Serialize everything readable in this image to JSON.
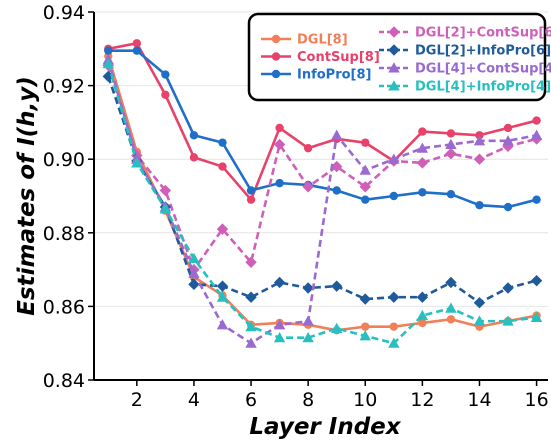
{
  "chart_data": {
    "type": "line",
    "xlabel": "Layer Index",
    "ylabel": "Estimates of I(h,y)",
    "xlim": [
      0.5,
      16.4
    ],
    "ylim": [
      0.84,
      0.94
    ],
    "x_ticks": [
      2,
      4,
      6,
      8,
      10,
      12,
      14,
      16
    ],
    "y_ticks": [
      0.84,
      0.86,
      0.88,
      0.9,
      0.92,
      0.94
    ],
    "y_tick_labels": [
      "0.84",
      "0.86",
      "0.88",
      "0.90",
      "0.92",
      "0.94"
    ],
    "x": [
      1,
      2,
      3,
      4,
      5,
      6,
      7,
      8,
      9,
      10,
      11,
      12,
      13,
      14,
      15,
      16
    ],
    "legend_position": "top-right",
    "series": [
      {
        "name": "DGL[8]",
        "color": "#f0805a",
        "style": "solid",
        "marker": "circle",
        "values": [
          0.928,
          0.902,
          0.886,
          0.868,
          0.863,
          0.855,
          0.8555,
          0.855,
          0.8535,
          0.8545,
          0.8545,
          0.8555,
          0.8565,
          0.8545,
          0.856,
          0.8575
        ]
      },
      {
        "name": "ContSup[8]",
        "color": "#e8416a",
        "style": "solid",
        "marker": "circle",
        "values": [
          0.93,
          0.9315,
          0.9175,
          0.9005,
          0.898,
          0.889,
          0.9085,
          0.903,
          0.9055,
          0.9045,
          0.8995,
          0.9075,
          0.907,
          0.9065,
          0.9085,
          0.9105
        ]
      },
      {
        "name": "InfoPro[8]",
        "color": "#1f6fc8",
        "style": "solid",
        "marker": "circle",
        "values": [
          0.9295,
          0.9295,
          0.923,
          0.9065,
          0.9045,
          0.8915,
          0.8935,
          0.893,
          0.8915,
          0.889,
          0.89,
          0.891,
          0.8905,
          0.8875,
          0.887,
          0.889
        ]
      },
      {
        "name": "DGL[2]+ContSup[6]",
        "color": "#cf5fb8",
        "style": "dashed",
        "marker": "diamond",
        "values": [
          0.9255,
          0.901,
          0.8915,
          0.87,
          0.881,
          0.872,
          0.904,
          0.8925,
          0.898,
          0.8925,
          0.8995,
          0.899,
          0.9015,
          0.9,
          0.9035,
          0.9055
        ]
      },
      {
        "name": "DGL[2]+InfoPro[6]",
        "color": "#1f5b9a",
        "style": "dashed",
        "marker": "diamond",
        "values": [
          0.9225,
          0.8995,
          0.887,
          0.866,
          0.8655,
          0.8625,
          0.8665,
          0.865,
          0.8655,
          0.862,
          0.8625,
          0.8625,
          0.8665,
          0.861,
          0.865,
          0.867
        ]
      },
      {
        "name": "DGL[4]+ContSup[4]",
        "color": "#9a6ad0",
        "style": "dashed",
        "marker": "triangle",
        "values": [
          0.927,
          0.9,
          0.887,
          0.869,
          0.855,
          0.85,
          0.855,
          0.856,
          0.9065,
          0.897,
          0.9,
          0.903,
          0.904,
          0.905,
          0.905,
          0.9065
        ]
      },
      {
        "name": "DGL[4]+InfoPro[4]",
        "color": "#27bfbf",
        "style": "dashed",
        "marker": "triangle",
        "values": [
          0.926,
          0.899,
          0.8865,
          0.873,
          0.8625,
          0.8545,
          0.8515,
          0.8515,
          0.854,
          0.852,
          0.85,
          0.8575,
          0.8595,
          0.856,
          0.856,
          0.857
        ]
      }
    ]
  }
}
